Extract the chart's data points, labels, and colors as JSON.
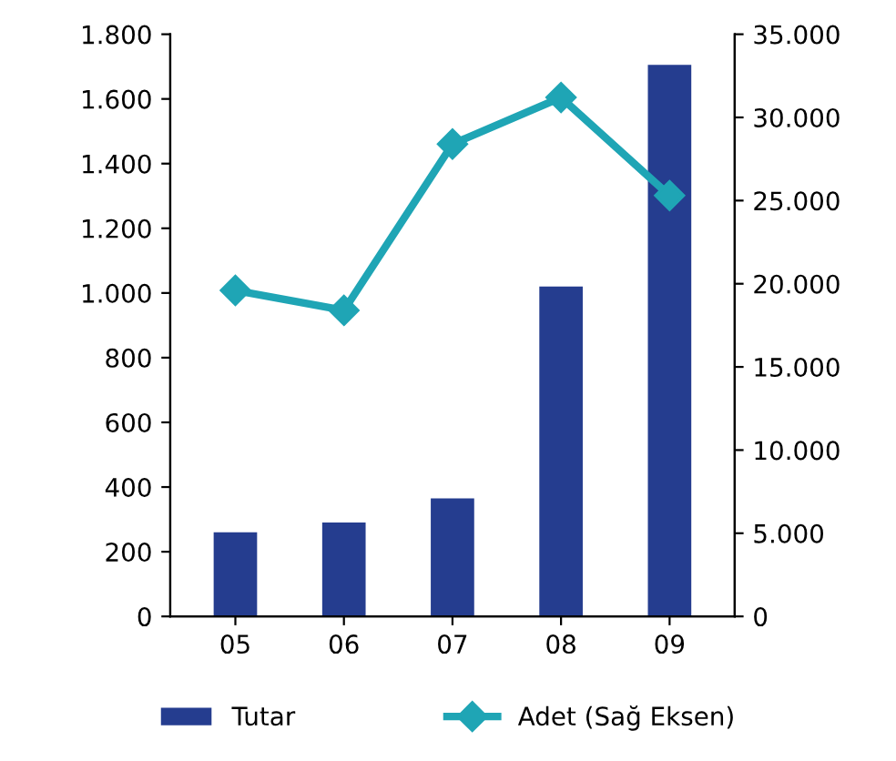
{
  "chart_data": {
    "type": "bar",
    "categories": [
      "05",
      "06",
      "07",
      "08",
      "09"
    ],
    "series": [
      {
        "name": "Tutar",
        "color": "#253d8f",
        "values": [
          260,
          290,
          365,
          1020,
          1705
        ]
      },
      {
        "name": "Adet (Sağ Eksen)",
        "type": "line",
        "axis": "y2",
        "color": "#1fa5b5",
        "marker": "diamond",
        "values": [
          19600,
          18400,
          28400,
          31200,
          25300
        ]
      }
    ],
    "ylim": [
      0,
      1800
    ],
    "yticks": [
      0,
      200,
      400,
      600,
      800,
      {
        "value": 1000,
        "label": "1.000"
      },
      {
        "value": 1200,
        "label": "1.200"
      },
      {
        "value": 1400,
        "label": "1.400"
      },
      {
        "value": 1600,
        "label": "1.600"
      },
      {
        "value": 1800,
        "label": "1.800"
      }
    ],
    "y2lim": [
      0,
      35000
    ],
    "y2ticks": [
      0,
      {
        "value": 5000,
        "label": "5.000"
      },
      {
        "value": 10000,
        "label": "10.000"
      },
      {
        "value": 15000,
        "label": "15.000"
      },
      {
        "value": 20000,
        "label": "20.000"
      },
      {
        "value": 25000,
        "label": "25.000"
      },
      {
        "value": 30000,
        "label": "30.000"
      },
      {
        "value": 35000,
        "label": "35.000"
      }
    ],
    "grid": false,
    "legend": "bottom"
  }
}
